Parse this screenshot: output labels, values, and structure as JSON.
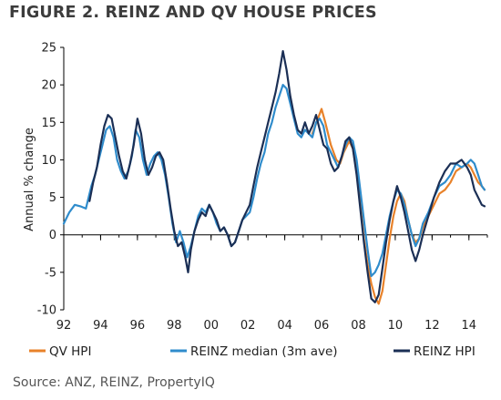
{
  "chart_data": {
    "type": "line",
    "title": "FIGURE 2. REINZ AND QV HOUSE PRICES",
    "ylabel": "Annual % change",
    "xlabel": "",
    "source": "Source: ANZ, REINZ, PropertyIQ",
    "xlim": [
      1992,
      2015
    ],
    "ylim": [
      -10,
      25
    ],
    "yticks": [
      -10,
      -5,
      0,
      5,
      10,
      15,
      20,
      25
    ],
    "xticks": [
      {
        "value": 1992,
        "label": "92"
      },
      {
        "value": 1994,
        "label": "94"
      },
      {
        "value": 1996,
        "label": "96"
      },
      {
        "value": 1998,
        "label": "98"
      },
      {
        "value": 2000,
        "label": "00"
      },
      {
        "value": 2002,
        "label": "02"
      },
      {
        "value": 2004,
        "label": "04"
      },
      {
        "value": 2006,
        "label": "06"
      },
      {
        "value": 2008,
        "label": "08"
      },
      {
        "value": 2010,
        "label": "10"
      },
      {
        "value": 2012,
        "label": "12"
      },
      {
        "value": 2014,
        "label": "14"
      }
    ],
    "grid": false,
    "legend": "bottom",
    "series": [
      {
        "name": "QV HPI",
        "color": "#e8822a",
        "points": [
          [
            2005.5,
            13.5
          ],
          [
            2005.8,
            15.5
          ],
          [
            2006.0,
            16.8
          ],
          [
            2006.2,
            15.0
          ],
          [
            2006.5,
            12.0
          ],
          [
            2006.8,
            10.0
          ],
          [
            2007.0,
            9.5
          ],
          [
            2007.2,
            11.0
          ],
          [
            2007.5,
            12.5
          ],
          [
            2007.7,
            11.5
          ],
          [
            2007.9,
            8.5
          ],
          [
            2008.1,
            4.0
          ],
          [
            2008.3,
            -0.5
          ],
          [
            2008.5,
            -4.0
          ],
          [
            2008.7,
            -6.5
          ],
          [
            2008.9,
            -8.3
          ],
          [
            2009.1,
            -9.2
          ],
          [
            2009.3,
            -7.5
          ],
          [
            2009.5,
            -4.0
          ],
          [
            2009.7,
            -0.5
          ],
          [
            2009.9,
            2.5
          ],
          [
            2010.1,
            4.5
          ],
          [
            2010.3,
            5.5
          ],
          [
            2010.5,
            4.5
          ],
          [
            2010.7,
            2.0
          ],
          [
            2010.9,
            0.0
          ],
          [
            2011.1,
            -1.0
          ],
          [
            2011.3,
            -0.5
          ],
          [
            2011.5,
            1.0
          ],
          [
            2011.8,
            2.5
          ],
          [
            2012.1,
            4.0
          ],
          [
            2012.4,
            5.5
          ],
          [
            2012.7,
            6.0
          ],
          [
            2013.0,
            7.0
          ],
          [
            2013.3,
            8.5
          ],
          [
            2013.6,
            9.0
          ],
          [
            2013.9,
            9.5
          ],
          [
            2014.1,
            9.0
          ],
          [
            2014.3,
            8.0
          ],
          [
            2014.5,
            7.0
          ],
          [
            2014.7,
            6.5
          ],
          [
            2014.85,
            6.0
          ]
        ]
      },
      {
        "name": "REINZ median (3m ave)",
        "color": "#2f8ccc",
        "points": [
          [
            1992.0,
            1.5
          ],
          [
            1992.3,
            3.0
          ],
          [
            1992.6,
            4.0
          ],
          [
            1992.9,
            3.8
          ],
          [
            1993.2,
            3.5
          ],
          [
            1993.5,
            6.5
          ],
          [
            1993.7,
            8.0
          ],
          [
            1993.9,
            10.0
          ],
          [
            1994.1,
            12.0
          ],
          [
            1994.3,
            14.0
          ],
          [
            1994.5,
            14.5
          ],
          [
            1994.7,
            13.0
          ],
          [
            1994.9,
            10.0
          ],
          [
            1995.1,
            8.5
          ],
          [
            1995.3,
            7.5
          ],
          [
            1995.5,
            8.5
          ],
          [
            1995.7,
            10.5
          ],
          [
            1995.9,
            14.0
          ],
          [
            1996.1,
            13.0
          ],
          [
            1996.3,
            10.0
          ],
          [
            1996.5,
            8.0
          ],
          [
            1996.7,
            9.5
          ],
          [
            1996.9,
            10.5
          ],
          [
            1997.1,
            11.0
          ],
          [
            1997.3,
            10.0
          ],
          [
            1997.5,
            8.0
          ],
          [
            1997.7,
            5.0
          ],
          [
            1997.9,
            1.5
          ],
          [
            1998.1,
            -1.0
          ],
          [
            1998.3,
            0.5
          ],
          [
            1998.5,
            -1.0
          ],
          [
            1998.7,
            -3.0
          ],
          [
            1998.9,
            -1.5
          ],
          [
            1999.1,
            0.5
          ],
          [
            1999.3,
            2.5
          ],
          [
            1999.5,
            3.5
          ],
          [
            1999.7,
            3.0
          ],
          [
            1999.9,
            4.0
          ],
          [
            2000.1,
            3.0
          ],
          [
            2000.3,
            1.5
          ],
          [
            2000.5,
            0.5
          ],
          [
            2000.7,
            1.0
          ],
          [
            2000.9,
            0.0
          ],
          [
            2001.1,
            -1.5
          ],
          [
            2001.3,
            -1.0
          ],
          [
            2001.5,
            0.5
          ],
          [
            2001.7,
            2.0
          ],
          [
            2001.9,
            2.5
          ],
          [
            2002.1,
            3.0
          ],
          [
            2002.3,
            5.0
          ],
          [
            2002.5,
            7.5
          ],
          [
            2002.7,
            9.5
          ],
          [
            2002.9,
            11.0
          ],
          [
            2003.1,
            13.5
          ],
          [
            2003.3,
            15.0
          ],
          [
            2003.5,
            17.0
          ],
          [
            2003.7,
            18.5
          ],
          [
            2003.9,
            20.0
          ],
          [
            2004.1,
            19.5
          ],
          [
            2004.3,
            17.5
          ],
          [
            2004.5,
            15.5
          ],
          [
            2004.7,
            13.5
          ],
          [
            2004.9,
            13.0
          ],
          [
            2005.1,
            14.0
          ],
          [
            2005.3,
            13.5
          ],
          [
            2005.5,
            13.0
          ],
          [
            2005.7,
            15.0
          ],
          [
            2005.9,
            15.5
          ],
          [
            2006.1,
            14.5
          ],
          [
            2006.3,
            12.0
          ],
          [
            2006.5,
            11.0
          ],
          [
            2006.7,
            10.0
          ],
          [
            2006.9,
            9.0
          ],
          [
            2007.1,
            10.5
          ],
          [
            2007.3,
            12.0
          ],
          [
            2007.5,
            13.0
          ],
          [
            2007.7,
            12.5
          ],
          [
            2007.9,
            10.0
          ],
          [
            2008.1,
            6.0
          ],
          [
            2008.3,
            2.0
          ],
          [
            2008.5,
            -2.0
          ],
          [
            2008.7,
            -5.5
          ],
          [
            2008.9,
            -5.0
          ],
          [
            2009.1,
            -4.0
          ],
          [
            2009.3,
            -2.5
          ],
          [
            2009.5,
            0.0
          ],
          [
            2009.7,
            2.5
          ],
          [
            2009.9,
            4.5
          ],
          [
            2010.1,
            6.0
          ],
          [
            2010.3,
            5.5
          ],
          [
            2010.5,
            4.0
          ],
          [
            2010.7,
            2.0
          ],
          [
            2010.9,
            0.0
          ],
          [
            2011.1,
            -1.5
          ],
          [
            2011.3,
            -0.5
          ],
          [
            2011.5,
            1.5
          ],
          [
            2011.8,
            3.0
          ],
          [
            2012.1,
            5.0
          ],
          [
            2012.4,
            6.5
          ],
          [
            2012.7,
            7.0
          ],
          [
            2013.0,
            8.0
          ],
          [
            2013.3,
            9.5
          ],
          [
            2013.6,
            9.0
          ],
          [
            2013.9,
            9.5
          ],
          [
            2014.1,
            10.0
          ],
          [
            2014.3,
            9.5
          ],
          [
            2014.5,
            8.0
          ],
          [
            2014.7,
            6.5
          ],
          [
            2014.85,
            6.0
          ]
        ]
      },
      {
        "name": "REINZ HPI",
        "color": "#1b2f55",
        "points": [
          [
            1993.4,
            4.5
          ],
          [
            1993.6,
            7.0
          ],
          [
            1993.8,
            9.0
          ],
          [
            1994.0,
            12.0
          ],
          [
            1994.2,
            14.5
          ],
          [
            1994.4,
            16.0
          ],
          [
            1994.6,
            15.5
          ],
          [
            1994.8,
            13.0
          ],
          [
            1995.0,
            10.5
          ],
          [
            1995.2,
            8.5
          ],
          [
            1995.4,
            7.5
          ],
          [
            1995.6,
            9.5
          ],
          [
            1995.8,
            12.0
          ],
          [
            1996.0,
            15.5
          ],
          [
            1996.2,
            13.5
          ],
          [
            1996.4,
            10.0
          ],
          [
            1996.6,
            8.0
          ],
          [
            1996.8,
            9.0
          ],
          [
            1997.0,
            10.5
          ],
          [
            1997.2,
            11.0
          ],
          [
            1997.4,
            10.0
          ],
          [
            1997.6,
            7.0
          ],
          [
            1997.8,
            3.5
          ],
          [
            1998.0,
            0.5
          ],
          [
            1998.2,
            -1.5
          ],
          [
            1998.4,
            -1.0
          ],
          [
            1998.6,
            -3.0
          ],
          [
            1998.75,
            -5.0
          ],
          [
            1998.9,
            -2.0
          ],
          [
            1999.1,
            0.5
          ],
          [
            1999.3,
            2.0
          ],
          [
            1999.5,
            3.0
          ],
          [
            1999.7,
            2.5
          ],
          [
            1999.9,
            4.0
          ],
          [
            2000.1,
            3.0
          ],
          [
            2000.3,
            2.0
          ],
          [
            2000.5,
            0.5
          ],
          [
            2000.7,
            1.0
          ],
          [
            2000.9,
            0.0
          ],
          [
            2001.1,
            -1.5
          ],
          [
            2001.3,
            -1.0
          ],
          [
            2001.5,
            0.5
          ],
          [
            2001.7,
            2.0
          ],
          [
            2001.9,
            3.0
          ],
          [
            2002.1,
            4.0
          ],
          [
            2002.3,
            6.5
          ],
          [
            2002.5,
            9.0
          ],
          [
            2002.7,
            11.0
          ],
          [
            2002.9,
            13.0
          ],
          [
            2003.1,
            15.0
          ],
          [
            2003.3,
            17.0
          ],
          [
            2003.5,
            19.0
          ],
          [
            2003.7,
            21.5
          ],
          [
            2003.9,
            24.5
          ],
          [
            2004.1,
            22.0
          ],
          [
            2004.3,
            18.5
          ],
          [
            2004.5,
            16.0
          ],
          [
            2004.7,
            14.0
          ],
          [
            2004.9,
            13.5
          ],
          [
            2005.1,
            15.0
          ],
          [
            2005.3,
            13.5
          ],
          [
            2005.5,
            14.5
          ],
          [
            2005.7,
            16.0
          ],
          [
            2005.9,
            14.0
          ],
          [
            2006.1,
            12.0
          ],
          [
            2006.3,
            11.5
          ],
          [
            2006.5,
            9.5
          ],
          [
            2006.7,
            8.5
          ],
          [
            2006.9,
            9.0
          ],
          [
            2007.1,
            10.5
          ],
          [
            2007.3,
            12.5
          ],
          [
            2007.5,
            13.0
          ],
          [
            2007.7,
            11.5
          ],
          [
            2007.9,
            8.0
          ],
          [
            2008.1,
            3.5
          ],
          [
            2008.3,
            -1.0
          ],
          [
            2008.5,
            -5.0
          ],
          [
            2008.7,
            -8.5
          ],
          [
            2008.9,
            -9.0
          ],
          [
            2009.1,
            -8.0
          ],
          [
            2009.3,
            -4.5
          ],
          [
            2009.5,
            -1.0
          ],
          [
            2009.7,
            2.0
          ],
          [
            2009.9,
            4.5
          ],
          [
            2010.1,
            6.5
          ],
          [
            2010.3,
            5.0
          ],
          [
            2010.5,
            3.0
          ],
          [
            2010.7,
            0.5
          ],
          [
            2010.9,
            -2.0
          ],
          [
            2011.1,
            -3.5
          ],
          [
            2011.3,
            -2.0
          ],
          [
            2011.5,
            0.0
          ],
          [
            2011.8,
            2.5
          ],
          [
            2012.1,
            5.0
          ],
          [
            2012.4,
            7.0
          ],
          [
            2012.7,
            8.5
          ],
          [
            2013.0,
            9.5
          ],
          [
            2013.3,
            9.5
          ],
          [
            2013.6,
            10.0
          ],
          [
            2013.9,
            9.0
          ],
          [
            2014.1,
            8.0
          ],
          [
            2014.3,
            6.0
          ],
          [
            2014.5,
            5.0
          ],
          [
            2014.7,
            4.0
          ],
          [
            2014.85,
            3.8
          ]
        ]
      }
    ]
  }
}
